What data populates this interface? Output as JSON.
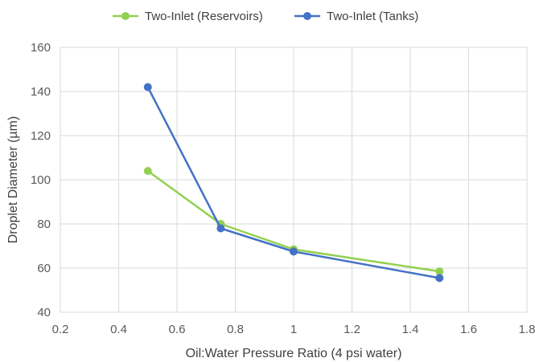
{
  "chart_data": {
    "type": "line",
    "xlabel": "Oil:Water Pressure Ratio (4 psi water)",
    "ylabel": "Droplet Diameter (µm)",
    "xlim": [
      0.2,
      1.8
    ],
    "ylim": [
      40,
      160
    ],
    "x_ticks": [
      0.2,
      0.4,
      0.6,
      0.8,
      1,
      1.2,
      1.4,
      1.6,
      1.8
    ],
    "y_ticks": [
      40,
      60,
      80,
      100,
      120,
      140,
      160
    ],
    "grid": true,
    "legend_position": "top",
    "series": [
      {
        "name": "Two-Inlet (Reservoirs)",
        "color": "#92d050",
        "x": [
          0.5,
          0.75,
          1,
          1.5
        ],
        "y": [
          104,
          80,
          68.5,
          58.5
        ]
      },
      {
        "name": "Two-Inlet (Tanks)",
        "color": "#4472c4",
        "x": [
          0.5,
          0.75,
          1,
          1.5
        ],
        "y": [
          142,
          78,
          67.5,
          55.5
        ]
      }
    ]
  }
}
